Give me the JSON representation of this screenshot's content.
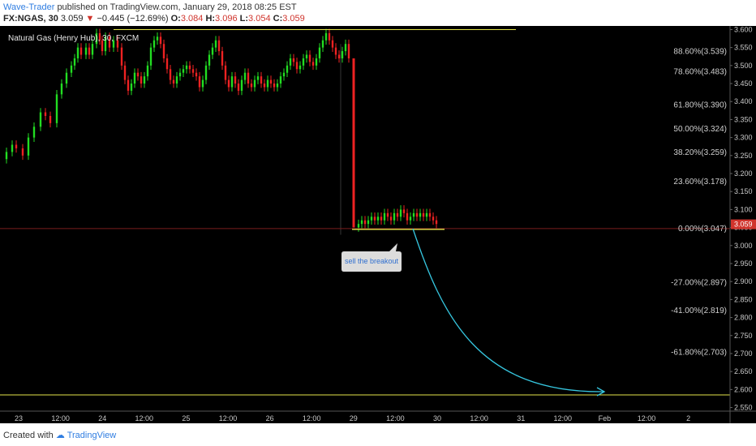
{
  "header": {
    "author": "Wave-Trader",
    "published": "published on TradingView.com, January 29, 2018 08:25 EST",
    "symbol": "FX:NGAS, 30",
    "last": "3.059",
    "arrow": "▼",
    "change": "−0.445 (−12.69%)",
    "o_label": "O:",
    "o_val": "3.084",
    "h_label": "H:",
    "h_val": "3.096",
    "l_label": "L:",
    "l_val": "3.054",
    "c_label": "C:",
    "c_val": "3.059"
  },
  "footer": {
    "created": "Created with",
    "brand": "TradingView"
  },
  "colors": {
    "background": "#000000",
    "up": "#22dd22",
    "down": "#ee2222",
    "yellow_line": "#e5e54a",
    "curve": "#36c6df",
    "price_tag": "#d0342c"
  },
  "chart_data": {
    "type": "candlestick",
    "title": "Natural Gas (Henry Hub), 30, FXCM",
    "y_axis_ticks": [
      "2.550",
      "2.600",
      "2.650",
      "2.700",
      "2.750",
      "2.800",
      "2.850",
      "2.900",
      "2.950",
      "3.000",
      "3.050",
      "3.100",
      "3.150",
      "3.200",
      "3.250",
      "3.300",
      "3.350",
      "3.400",
      "3.450",
      "3.500",
      "3.550",
      "3.600"
    ],
    "ylim": [
      2.54,
      3.61
    ],
    "x_axis_ticks": [
      "23",
      "12:00",
      "24",
      "12:00",
      "25",
      "12:00",
      "26",
      "12:00",
      "29",
      "12:00",
      "30",
      "12:00",
      "31",
      "12:00",
      "Feb",
      "12:00",
      "2"
    ],
    "current_price": "3.059",
    "fib_levels": [
      {
        "label": "88.60%(3.539)",
        "value": 3.539
      },
      {
        "label": "78.60%(3.483)",
        "value": 3.483
      },
      {
        "label": "61.80%(3.390)",
        "value": 3.39
      },
      {
        "label": "50.00%(3.324)",
        "value": 3.324
      },
      {
        "label": "38.20%(3.259)",
        "value": 3.259
      },
      {
        "label": "23.60%(3.178)",
        "value": 3.178
      },
      {
        "label": "0.00%(3.047)",
        "value": 3.047
      },
      {
        "label": "-27.00%(2.897)",
        "value": 2.897
      },
      {
        "label": "-41.00%(2.819)",
        "value": 2.819
      },
      {
        "label": "-61.80%(2.703)",
        "value": 2.703
      }
    ],
    "horizontal_lines": [
      3.6,
      2.585
    ],
    "annotation": "sell the breakout",
    "price_path": [
      [
        0,
        3.24
      ],
      [
        8,
        3.26
      ],
      [
        15,
        3.28
      ],
      [
        20,
        3.27
      ],
      [
        28,
        3.25
      ],
      [
        35,
        3.3
      ],
      [
        42,
        3.33
      ],
      [
        50,
        3.37
      ],
      [
        56,
        3.36
      ],
      [
        62,
        3.34
      ],
      [
        70,
        3.42
      ],
      [
        76,
        3.45
      ],
      [
        82,
        3.48
      ],
      [
        88,
        3.5
      ],
      [
        92,
        3.52
      ],
      [
        96,
        3.55
      ],
      [
        100,
        3.53
      ],
      [
        106,
        3.55
      ],
      [
        110,
        3.53
      ],
      [
        114,
        3.56
      ],
      [
        119,
        3.59
      ],
      [
        123,
        3.57
      ],
      [
        126,
        3.54
      ],
      [
        130,
        3.58
      ],
      [
        135,
        3.55
      ],
      [
        140,
        3.57
      ],
      [
        145,
        3.55
      ],
      [
        150,
        3.5
      ],
      [
        154,
        3.46
      ],
      [
        158,
        3.43
      ],
      [
        162,
        3.45
      ],
      [
        166,
        3.48
      ],
      [
        170,
        3.47
      ],
      [
        174,
        3.45
      ],
      [
        178,
        3.47
      ],
      [
        182,
        3.5
      ],
      [
        186,
        3.55
      ],
      [
        190,
        3.57
      ],
      [
        194,
        3.58
      ],
      [
        198,
        3.56
      ],
      [
        202,
        3.52
      ],
      [
        206,
        3.49
      ],
      [
        210,
        3.46
      ],
      [
        214,
        3.45
      ],
      [
        218,
        3.47
      ],
      [
        222,
        3.48
      ],
      [
        226,
        3.49
      ],
      [
        230,
        3.5
      ],
      [
        234,
        3.49
      ],
      [
        238,
        3.48
      ],
      [
        242,
        3.47
      ],
      [
        246,
        3.44
      ],
      [
        250,
        3.46
      ],
      [
        254,
        3.5
      ],
      [
        258,
        3.53
      ],
      [
        262,
        3.55
      ],
      [
        266,
        3.57
      ],
      [
        270,
        3.54
      ],
      [
        274,
        3.5
      ],
      [
        278,
        3.46
      ],
      [
        282,
        3.44
      ],
      [
        286,
        3.47
      ],
      [
        290,
        3.45
      ],
      [
        294,
        3.43
      ],
      [
        298,
        3.46
      ],
      [
        302,
        3.48
      ],
      [
        306,
        3.45
      ],
      [
        310,
        3.44
      ],
      [
        314,
        3.46
      ],
      [
        318,
        3.47
      ],
      [
        322,
        3.45
      ],
      [
        326,
        3.44
      ],
      [
        330,
        3.46
      ],
      [
        334,
        3.45
      ],
      [
        338,
        3.44
      ],
      [
        342,
        3.45
      ],
      [
        346,
        3.47
      ],
      [
        350,
        3.48
      ],
      [
        354,
        3.5
      ],
      [
        358,
        3.52
      ],
      [
        362,
        3.51
      ],
      [
        366,
        3.49
      ],
      [
        370,
        3.5
      ],
      [
        374,
        3.52
      ],
      [
        378,
        3.53
      ],
      [
        382,
        3.51
      ],
      [
        386,
        3.5
      ],
      [
        390,
        3.52
      ],
      [
        394,
        3.55
      ],
      [
        398,
        3.57
      ],
      [
        402,
        3.59
      ],
      [
        406,
        3.57
      ],
      [
        410,
        3.55
      ],
      [
        414,
        3.53
      ],
      [
        418,
        3.52
      ],
      [
        422,
        3.54
      ],
      [
        426,
        3.56
      ],
      [
        430,
        3.52
      ]
    ],
    "consolidation_path": [
      [
        438,
        3.05
      ],
      [
        442,
        3.06
      ],
      [
        446,
        3.07
      ],
      [
        450,
        3.06
      ],
      [
        454,
        3.07
      ],
      [
        458,
        3.08
      ],
      [
        462,
        3.07
      ],
      [
        466,
        3.08
      ],
      [
        470,
        3.07
      ],
      [
        474,
        3.09
      ],
      [
        478,
        3.08
      ],
      [
        482,
        3.07
      ],
      [
        486,
        3.09
      ],
      [
        490,
        3.08
      ],
      [
        494,
        3.1
      ],
      [
        498,
        3.09
      ],
      [
        502,
        3.07
      ],
      [
        506,
        3.08
      ],
      [
        510,
        3.09
      ],
      [
        514,
        3.08
      ],
      [
        518,
        3.09
      ],
      [
        522,
        3.08
      ],
      [
        526,
        3.09
      ],
      [
        530,
        3.08
      ],
      [
        534,
        3.07
      ],
      [
        538,
        3.06
      ]
    ]
  }
}
